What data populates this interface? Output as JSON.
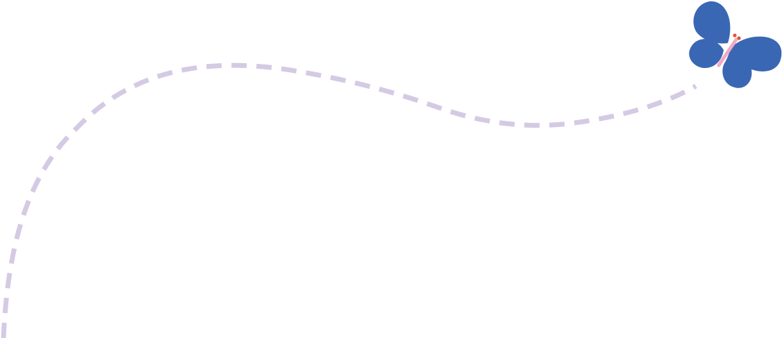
{
  "illustration": {
    "colors": {
      "flight_path": "#d5cae3",
      "butterfly_wings": "#3a67b4",
      "butterfly_body": "#f2aac4",
      "butterfly_antennae": "#e0533a"
    },
    "icons": [
      "dashed-flight-path",
      "butterfly-icon"
    ]
  }
}
